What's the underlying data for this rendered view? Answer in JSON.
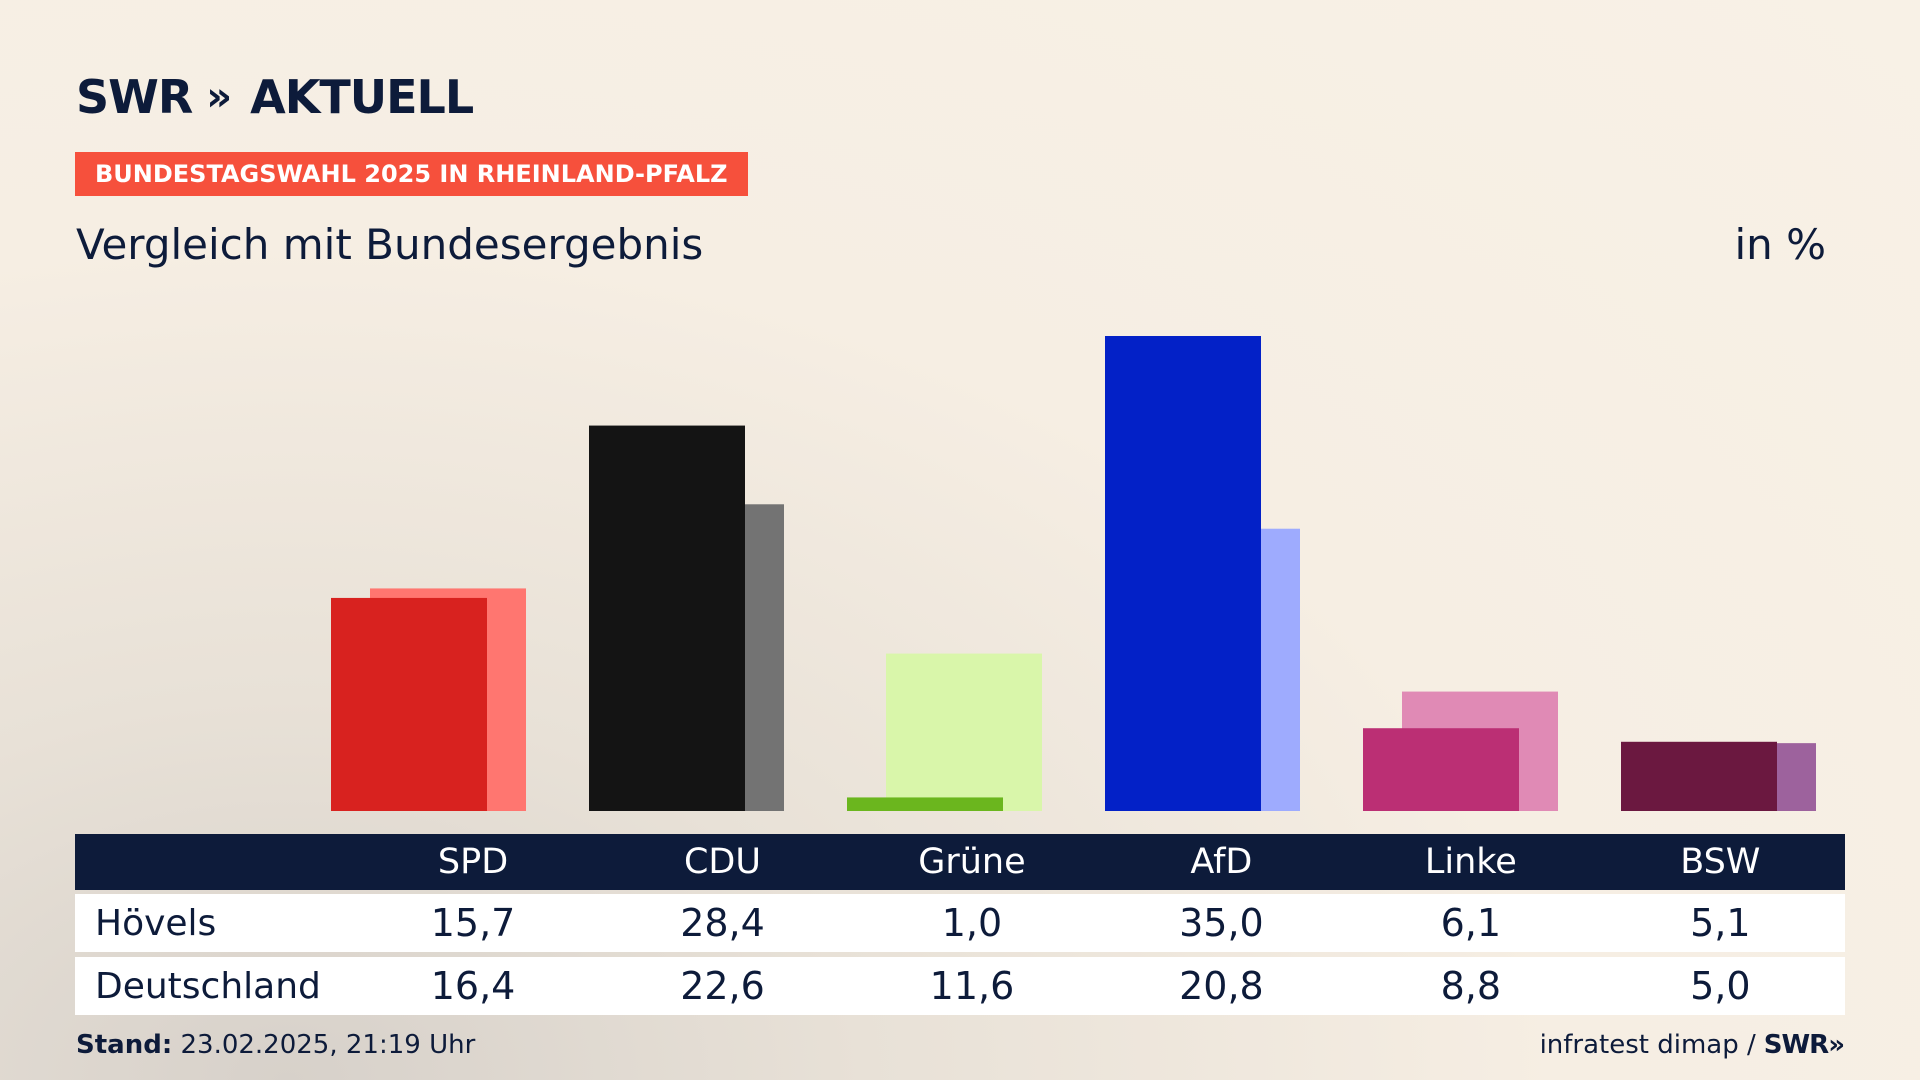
{
  "header": {
    "logo_text": "SWR",
    "logo_chevrons": "»",
    "logo_word": "AKTUELL",
    "badge": "BUNDESTAGSWAHL 2025 IN RHEINLAND-PFALZ",
    "subtitle": "Vergleich mit Bundesergebnis",
    "unit": "in %"
  },
  "chart_data": {
    "type": "bar",
    "title": "Vergleich mit Bundesergebnis",
    "ylabel": "in %",
    "ylim": [
      0,
      35
    ],
    "grid": false,
    "legend": "none",
    "categories": [
      "SPD",
      "CDU",
      "Grüne",
      "AfD",
      "Linke",
      "BSW"
    ],
    "series": [
      {
        "name": "Hövels",
        "values": [
          15.7,
          28.4,
          1.0,
          35.0,
          6.1,
          5.1
        ],
        "colors": [
          "#d8221f",
          "#141414",
          "#6bb61e",
          "#0321c7",
          "#bb2f74",
          "#6b1840"
        ]
      },
      {
        "name": "Deutschland",
        "values": [
          16.4,
          22.6,
          11.6,
          20.8,
          8.8,
          5.0
        ],
        "colors": [
          "#ff7670",
          "#737373",
          "#d9f6aa",
          "#9eabfe",
          "#e08ab5",
          "#9d629d"
        ]
      }
    ]
  },
  "table": {
    "headers": [
      "SPD",
      "CDU",
      "Grüne",
      "AfD",
      "Linke",
      "BSW"
    ],
    "rows": [
      {
        "label": "Hövels",
        "values": [
          "15,7",
          "28,4",
          "1,0",
          "35,0",
          "6,1",
          "5,1"
        ]
      },
      {
        "label": "Deutschland",
        "values": [
          "16,4",
          "22,6",
          "11,6",
          "20,8",
          "8,8",
          "5,0"
        ]
      }
    ]
  },
  "footer": {
    "stand_label": "Stand:",
    "stand_value": "23.02.2025, 21:19 Uhr",
    "source": "infratest dimap /",
    "source_logo": "SWR»"
  }
}
